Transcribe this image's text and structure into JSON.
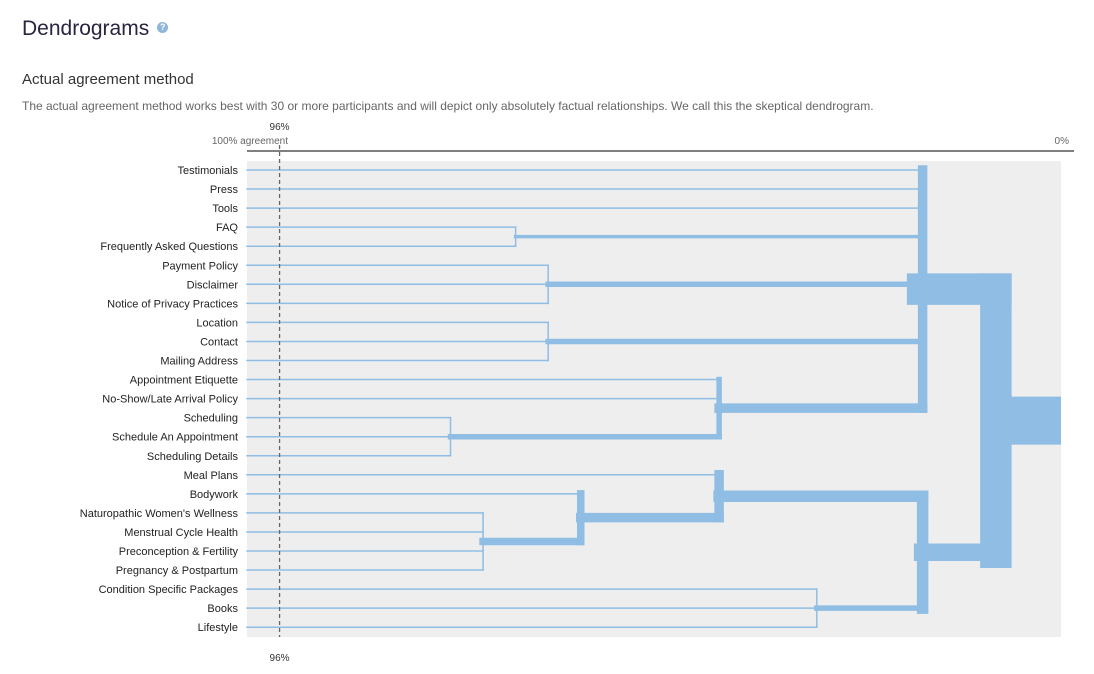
{
  "header": {
    "title": "Dendrograms",
    "help_icon": "question-circle-icon"
  },
  "section": {
    "title": "Actual agreement method",
    "description": "The actual agreement method works best with 30 or more participants and will depict only absolutely factual relationships. We call this the skeptical dendrogram."
  },
  "colors": {
    "branch": "#8fbde3",
    "plot_background": "#eeeeee",
    "axis": "#555555",
    "threshold_line": "#666666"
  },
  "chart_data": {
    "type": "dendrogram",
    "axis": {
      "left_label": "100% agreement",
      "right_label": "0%",
      "range": [
        100,
        0
      ],
      "threshold_value": 96,
      "threshold_label_top": "96%",
      "threshold_label_bottom": "96%"
    },
    "leaves": [
      "Testimonials",
      "Press",
      "Tools",
      "FAQ",
      "Frequently Asked Questions",
      "Payment Policy",
      "Disclaimer",
      "Notice of Privacy Practices",
      "Location",
      "Contact",
      "Mailing Address",
      "Appointment Etiquette",
      "No-Show/Late Arrival Policy",
      "Scheduling",
      "Schedule An Appointment",
      "Scheduling Details",
      "Meal Plans",
      "Bodywork",
      "Naturopathic Women's Wellness",
      "Menstrual Cycle Health",
      "Preconception & Fertility",
      "Pregnancy & Postpartum",
      "Condition Specific Packages",
      "Books",
      "Lifestyle"
    ],
    "merges": [
      {
        "id": "m1",
        "children": [
          "FAQ",
          "Frequently Asked Questions"
        ],
        "agreement": 67,
        "size": 2
      },
      {
        "id": "m2",
        "children": [
          "Payment Policy",
          "Disclaimer",
          "Notice of Privacy Practices"
        ],
        "agreement": 63,
        "size": 3
      },
      {
        "id": "m3",
        "children": [
          "Location",
          "Contact",
          "Mailing Address"
        ],
        "agreement": 63,
        "size": 3
      },
      {
        "id": "m4",
        "children": [
          "Scheduling",
          "Schedule An Appointment",
          "Scheduling Details"
        ],
        "agreement": 75,
        "size": 3
      },
      {
        "id": "m5",
        "children": [
          "Appointment Etiquette",
          "No-Show/Late Arrival Policy",
          "m4"
        ],
        "agreement": 42,
        "size": 5
      },
      {
        "id": "m6",
        "children": [
          "Naturopathic Women's Wellness",
          "Menstrual Cycle Health",
          "Preconception & Fertility",
          "Pregnancy & Postpartum"
        ],
        "agreement": 71,
        "size": 4
      },
      {
        "id": "m7",
        "children": [
          "Bodywork",
          "m6"
        ],
        "agreement": 59,
        "size": 5
      },
      {
        "id": "m8",
        "children": [
          "Meal Plans",
          "m7"
        ],
        "agreement": 42,
        "size": 6
      },
      {
        "id": "m9",
        "children": [
          "Condition Specific Packages",
          "Books",
          "Lifestyle"
        ],
        "agreement": 30,
        "size": 3
      },
      {
        "id": "m10",
        "children": [
          "m8",
          "m9"
        ],
        "agreement": 17,
        "size": 9
      },
      {
        "id": "m11",
        "children": [
          "Testimonials",
          "Press",
          "Tools",
          "m1",
          "m2",
          "m3",
          "m5"
        ],
        "agreement": 17,
        "size": 16
      },
      {
        "id": "m12",
        "children": [
          "m11",
          "m10"
        ],
        "agreement": 8,
        "size": 25
      }
    ]
  }
}
